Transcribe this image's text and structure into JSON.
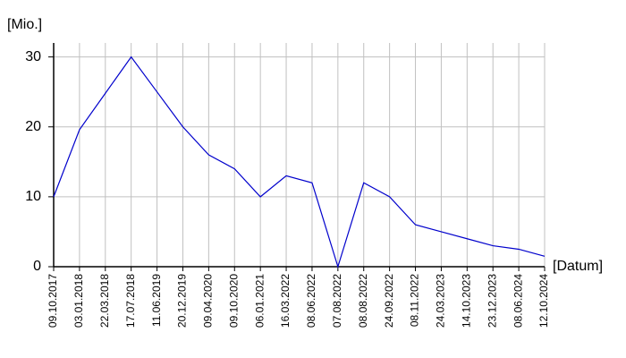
{
  "chart_data": {
    "type": "line",
    "y_label": "[Mio.]",
    "x_label": "[Datum]",
    "categories": [
      "09.10.2017",
      "03.01.2018",
      "22.03.2018",
      "17.07.2018",
      "11.06.2019",
      "20.12.2019",
      "09.04.2020",
      "09.10.2020",
      "06.01.2021",
      "16.03.2022",
      "08.06.2022",
      "07.08.2022",
      "08.08.2022",
      "24.09.2022",
      "08.11.2022",
      "24.03.2023",
      "14.10.2023",
      "23.12.2023",
      "08.06.2024",
      "12.10.2024"
    ],
    "values": [
      10,
      19.6,
      24.8,
      30,
      25,
      20,
      16,
      14,
      10,
      13,
      12,
      0,
      12,
      10,
      6,
      5,
      4,
      3,
      2.5,
      1.5
    ],
    "color": "#0000cc",
    "ylim": [
      0,
      32
    ],
    "yticks": [
      0,
      10,
      20,
      30
    ],
    "grid": true
  }
}
